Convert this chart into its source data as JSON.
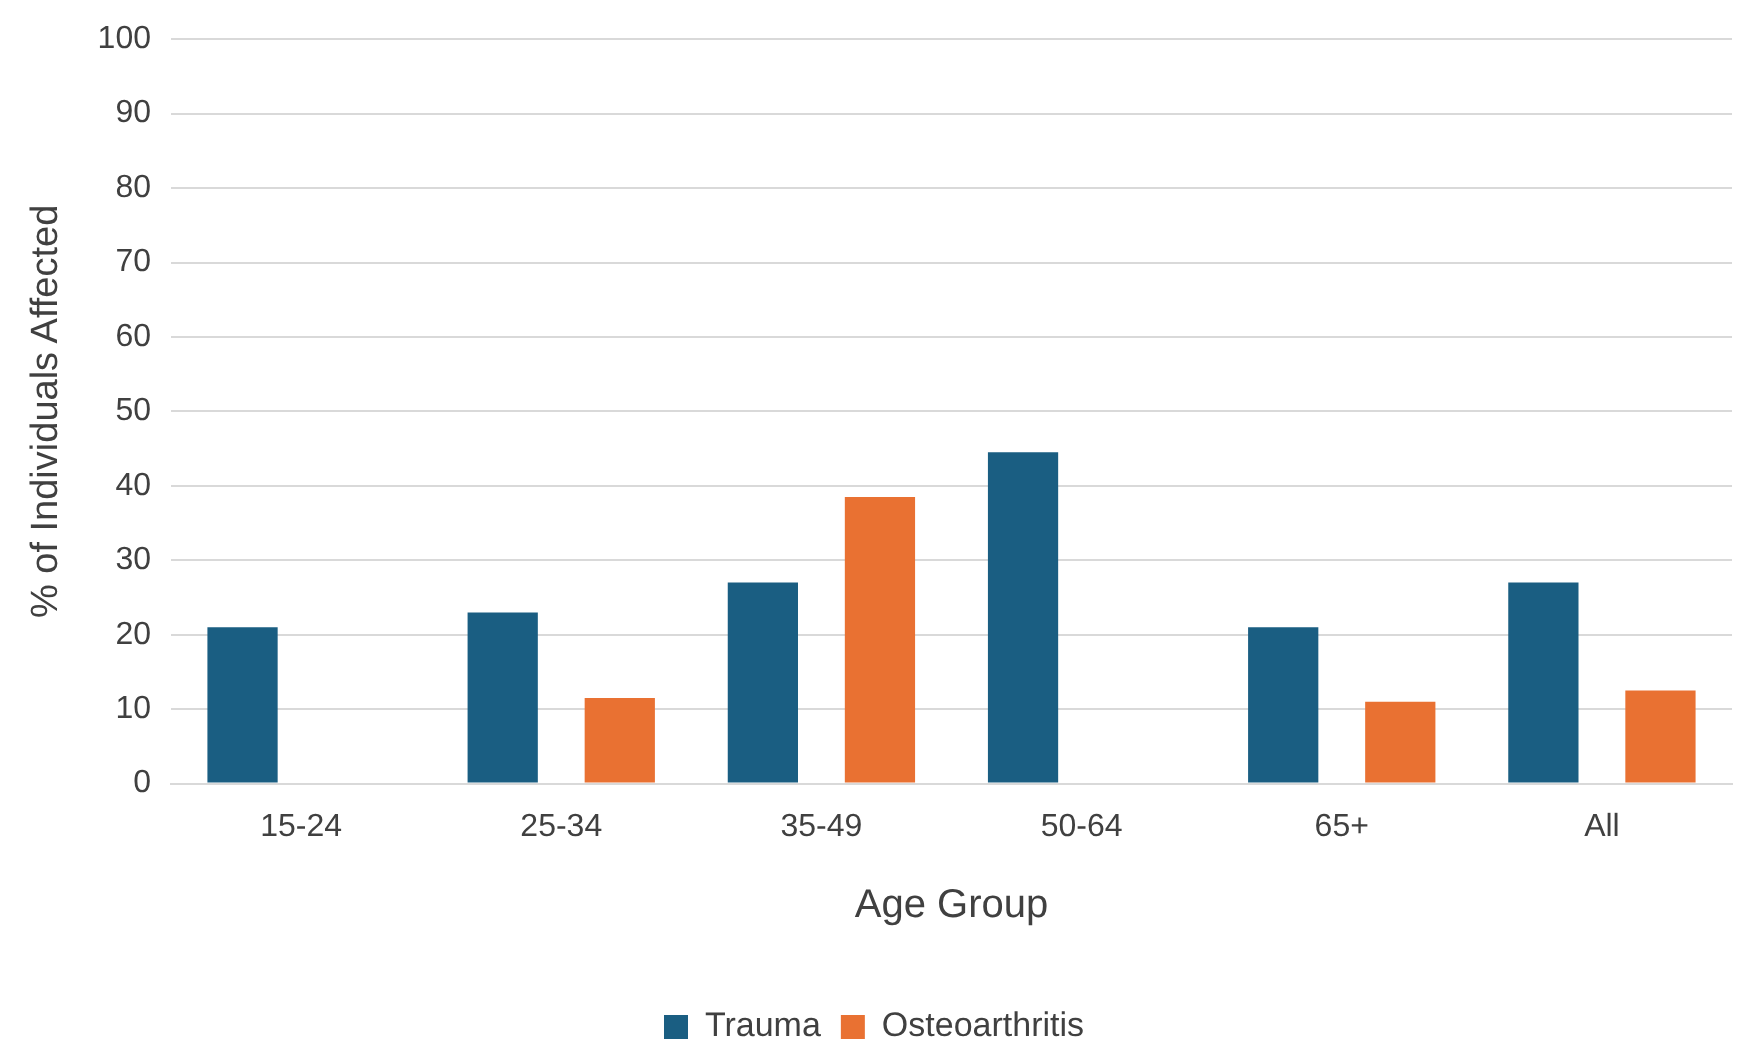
{
  "chart_data": {
    "type": "bar",
    "xlabel": "Age Group",
    "ylabel": "% of Individuals Affected",
    "categories": [
      "15-24",
      "25-34",
      "35-49",
      "50-64",
      "65+",
      "All"
    ],
    "series": [
      {
        "name": "Trauma",
        "color": "#1a5e82",
        "values": [
          21,
          23,
          27,
          44.5,
          21,
          27
        ]
      },
      {
        "name": "Osteoarthritis",
        "color": "#e97132",
        "values": [
          null,
          11.5,
          38.5,
          null,
          11,
          12.5
        ]
      }
    ],
    "ylim": [
      0,
      100
    ],
    "yticks": [
      0,
      10,
      20,
      30,
      40,
      50,
      60,
      70,
      80,
      90,
      100
    ],
    "grid": "y",
    "legend": "bottom"
  }
}
